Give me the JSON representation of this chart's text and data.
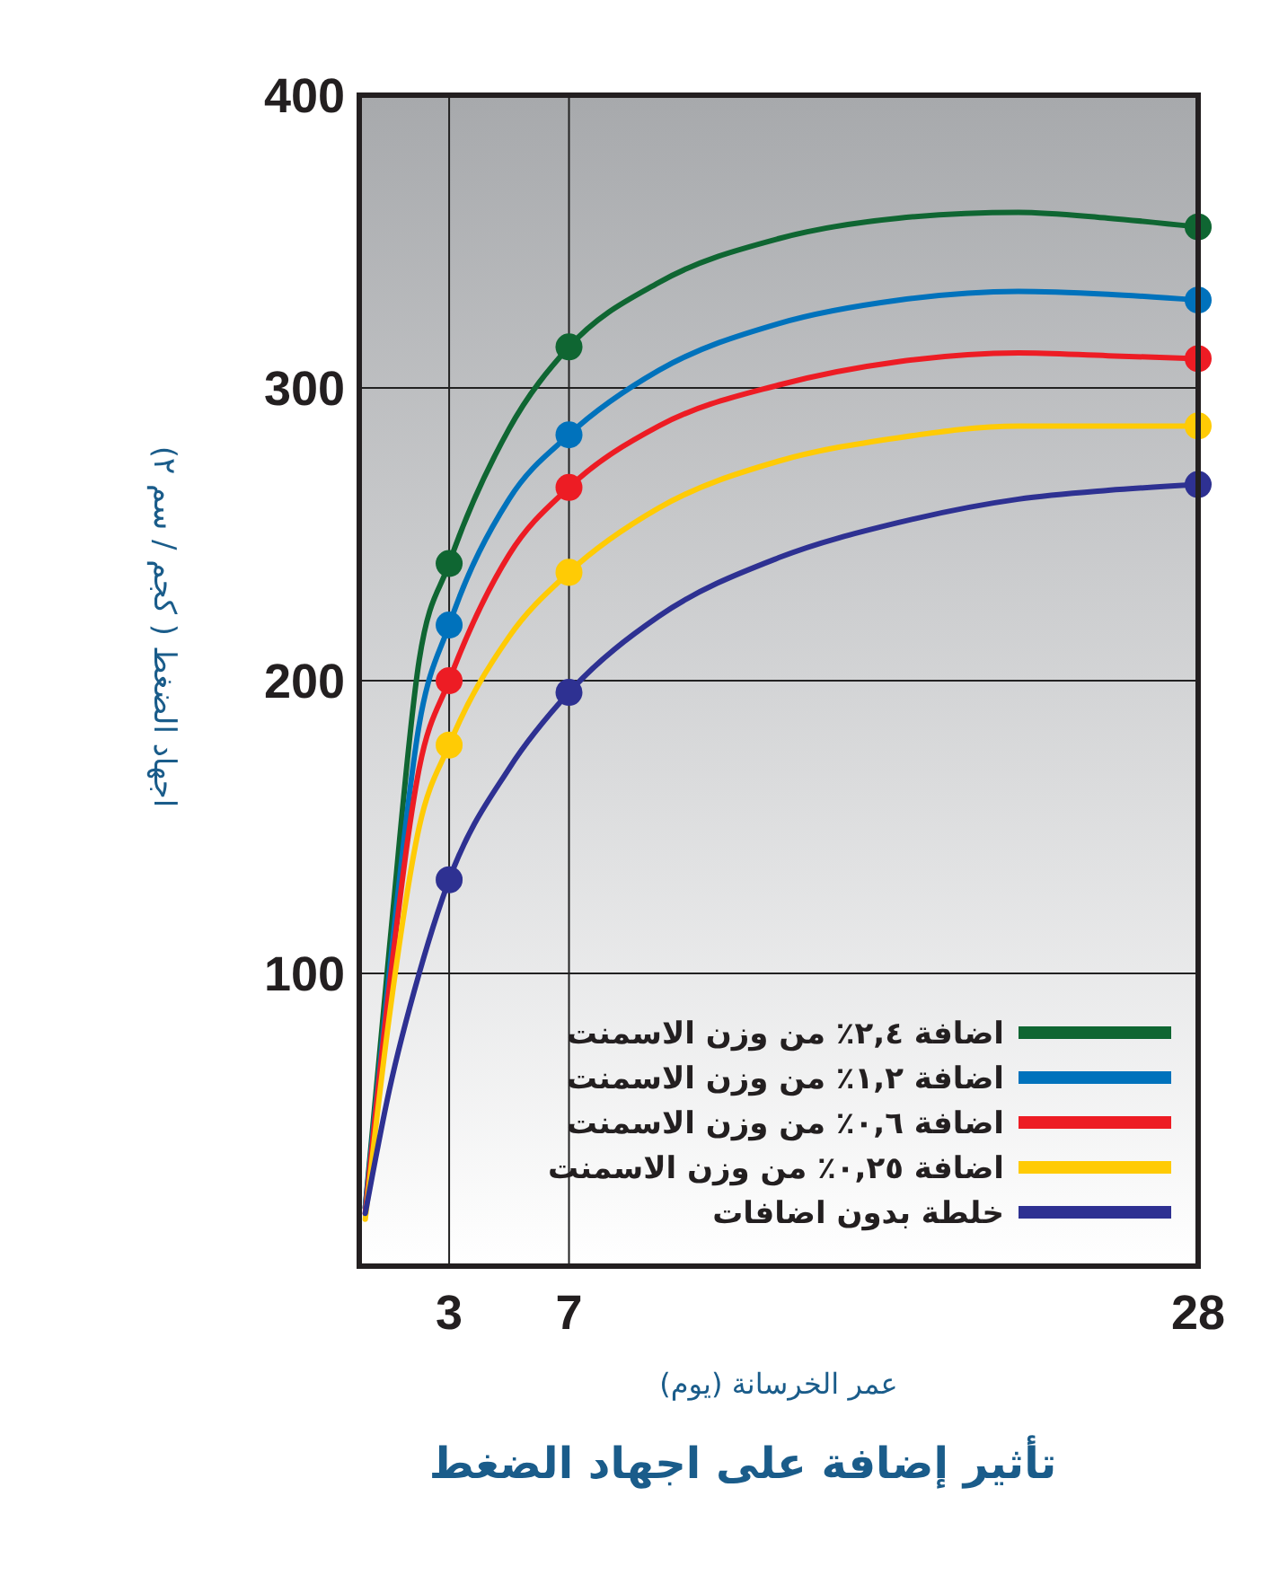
{
  "chart_data": {
    "type": "line",
    "title": "تأثير إضافة على اجهاد الضغط",
    "xlabel": "عمر الخرسانة (يوم)",
    "ylabel": "اجهاد الضغط ( كجم / سم ٢)",
    "xlim": [
      0,
      28
    ],
    "ylim": [
      0,
      400
    ],
    "xticks": [
      3,
      7,
      28
    ],
    "yticks": [
      100,
      200,
      300,
      400
    ],
    "grid": true,
    "legend": "bottom right",
    "marker": "none",
    "line_style": "solid",
    "series": [
      {
        "name": "اضافة ٢,٤٪ من وزن الاسمنت",
        "color": "#0f6632",
        "x": [
          0.2,
          1,
          2,
          3,
          5,
          7,
          10,
          14,
          18,
          22,
          25,
          28
        ],
        "values": [
          20,
          108,
          207,
          240,
          286,
          314,
          336,
          351,
          358,
          360,
          358,
          355
        ]
      },
      {
        "name": "اضافة ١,٢٪ من وزن الاسمنت",
        "color": "#0072bc",
        "x": [
          0.2,
          1,
          2,
          3,
          5,
          7,
          10,
          14,
          18,
          22,
          25,
          28
        ],
        "values": [
          20,
          100,
          185,
          219,
          262,
          284,
          306,
          322,
          330,
          333,
          332,
          330
        ]
      },
      {
        "name": "اضافة ٠,٦٪ من وزن الاسمنت",
        "color": "#ed1c24",
        "x": [
          0.2,
          1,
          2,
          3,
          5,
          7,
          10,
          14,
          18,
          22,
          25,
          28
        ],
        "values": [
          18,
          95,
          170,
          200,
          243,
          266,
          287,
          301,
          309,
          312,
          311,
          310
        ]
      },
      {
        "name": "اضافة ٠,٢٥٪ من وزن الاسمنت",
        "color": "#ffcb05",
        "x": [
          0.2,
          1,
          2,
          3,
          5,
          7,
          10,
          14,
          18,
          22,
          25,
          28
        ],
        "values": [
          16,
          85,
          150,
          178,
          215,
          237,
          259,
          275,
          283,
          287,
          287,
          287
        ]
      },
      {
        "name": "خلطة بدون اضافات",
        "color": "#2e3192",
        "x": [
          0.2,
          1,
          2,
          3,
          5,
          7,
          10,
          14,
          18,
          22,
          25,
          28
        ],
        "values": [
          18,
          60,
          100,
          132,
          170,
          196,
          222,
          242,
          254,
          262,
          265,
          267
        ]
      },
      {
        "type": "scatter",
        "marker": "circle",
        "color": "#0f6632",
        "x": [
          3,
          7,
          28
        ],
        "values": [
          240,
          314,
          355
        ]
      },
      {
        "type": "scatter",
        "marker": "circle",
        "color": "#0072bc",
        "x": [
          3,
          7,
          28
        ],
        "values": [
          219,
          284,
          330
        ]
      },
      {
        "type": "scatter",
        "marker": "circle",
        "color": "#ed1c24",
        "x": [
          3,
          7,
          28
        ],
        "values": [
          200,
          266,
          310
        ]
      },
      {
        "type": "scatter",
        "marker": "circle",
        "color": "#ffcb05",
        "x": [
          3,
          7,
          28
        ],
        "values": [
          178,
          237,
          287
        ]
      },
      {
        "type": "scatter",
        "marker": "circle",
        "color": "#2e3192",
        "x": [
          3,
          7,
          28
        ],
        "values": [
          132,
          196,
          267
        ]
      }
    ]
  }
}
